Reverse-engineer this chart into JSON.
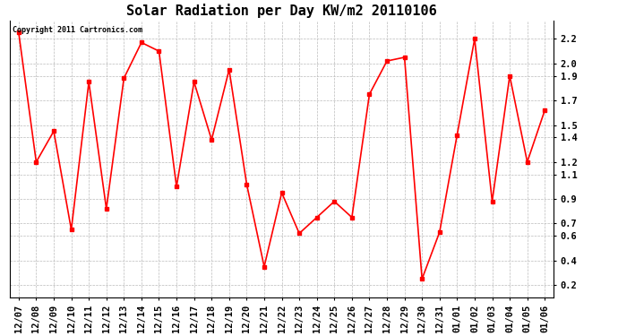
{
  "title": "Solar Radiation per Day KW/m2 20110106",
  "copyright_text": "Copyright 2011 Cartronics.com",
  "labels": [
    "12/07",
    "12/08",
    "12/09",
    "12/10",
    "12/11",
    "12/12",
    "12/13",
    "12/14",
    "12/15",
    "12/16",
    "12/17",
    "12/18",
    "12/19",
    "12/20",
    "12/21",
    "12/22",
    "12/23",
    "12/24",
    "12/25",
    "12/26",
    "12/27",
    "12/28",
    "12/29",
    "12/30",
    "12/31",
    "01/01",
    "01/02",
    "01/03",
    "01/04",
    "01/05",
    "01/06"
  ],
  "values": [
    2.25,
    1.2,
    1.45,
    0.65,
    1.85,
    0.82,
    1.88,
    2.17,
    2.1,
    1.0,
    1.85,
    1.38,
    1.95,
    1.02,
    0.35,
    0.95,
    0.62,
    0.75,
    0.88,
    0.75,
    1.75,
    2.02,
    2.05,
    0.25,
    0.63,
    1.42,
    2.2,
    0.88,
    1.9,
    1.2,
    1.62
  ],
  "ylim": [
    0.1,
    2.35
  ],
  "yticks": [
    0.2,
    0.4,
    0.6,
    0.7,
    0.9,
    1.1,
    1.2,
    1.4,
    1.5,
    1.7,
    1.9,
    2.0,
    2.2
  ],
  "line_color": "red",
  "marker": "s",
  "marker_size": 2.5,
  "bg_color": "#ffffff",
  "grid_color": "#bbbbbb",
  "title_fontsize": 11,
  "tick_fontsize": 7.5,
  "copyright_fontsize": 6
}
